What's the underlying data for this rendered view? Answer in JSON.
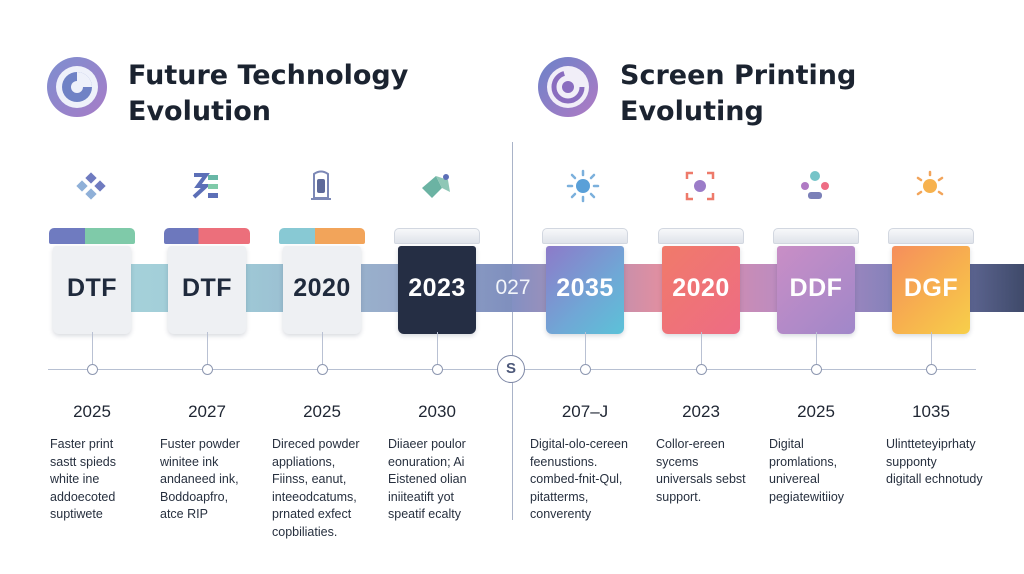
{
  "left_section": {
    "title_line1": "Future Technology",
    "title_line2": "Evolution",
    "logo_icon": "pie-chart-icon"
  },
  "right_section": {
    "title_line1": "Screen Printing",
    "title_line2": "Evoluting",
    "logo_icon": "target-ring-icon"
  },
  "middle_label": "027",
  "center_badge": "S",
  "milestones": [
    {
      "label": "DTF",
      "year": "2025",
      "icon": "diamond-cluster-icon",
      "description": [
        "Faster print",
        "sastt spieds",
        "white ine",
        "addoecoted",
        "suptiwete"
      ]
    },
    {
      "label": "DTF",
      "year": "2027",
      "icon": "zigzag-bars-icon",
      "description": [
        "Fuster powder",
        "winitee ink",
        "andaneed ink,",
        "Boddoapfro,",
        "atce RIP"
      ]
    },
    {
      "label": "2020",
      "year": "2025",
      "icon": "canister-icon",
      "description": [
        "Direced powder",
        "appliations,",
        "Fiinss,   eanut,",
        "inteeodcatums,",
        "prnated exfect",
        "copbiliaties."
      ]
    },
    {
      "label": "2023",
      "year": "2030",
      "icon": "printer-leaf-icon",
      "description": [
        "Diiaeer poulor",
        "eonuration; Ai",
        "Eistened olian",
        "iniiteatift yot",
        "speatif ecalty"
      ]
    },
    {
      "label": "2035",
      "year": "207–J",
      "icon": "sun-icon",
      "description": [
        "Digital-olo-cereen",
        "feenustions.",
        "combed-fnit-Qul,",
        "pitatterms,",
        "converenty"
      ]
    },
    {
      "label": "2020",
      "year": "2023",
      "icon": "focus-frame-icon",
      "description": [
        "Collor-ereen",
        "sycems",
        "universals sebst",
        "support."
      ]
    },
    {
      "label": "DDF",
      "year": "2025",
      "icon": "dots-group-icon",
      "description": [
        "Digital",
        "promlations,",
        "univereal",
        "pegiatewitiioy"
      ]
    },
    {
      "label": "DGF",
      "year": "1035",
      "icon": "sunburst-icon",
      "description": [
        "Ulintteteyiprhaty",
        "supponty",
        "digitall echnotudy"
      ]
    }
  ]
}
